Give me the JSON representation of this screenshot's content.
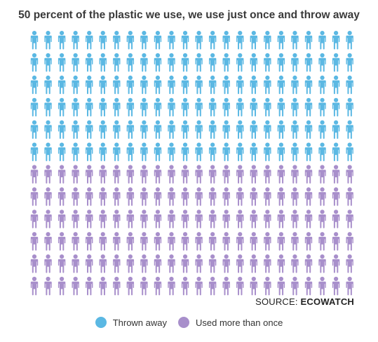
{
  "chart_data": {
    "type": "pictogram",
    "title": "50 percent of the plastic we use, we use just once and throw away",
    "grid": {
      "rows": 12,
      "columns": 24
    },
    "series": [
      {
        "name": "Thrown away",
        "rows": 6,
        "color": "#5bb8e3"
      },
      {
        "name": "Used more than once",
        "rows": 6,
        "color": "#a88fcb"
      }
    ],
    "percent_thrown_away": 50
  },
  "source": {
    "prefix": "SOURCE:",
    "name": "ECOWATCH"
  },
  "legend": {
    "placement": "bottom-center",
    "items": [
      {
        "label": "Thrown away",
        "color": "#5bb8e3"
      },
      {
        "label": "Used more than once",
        "color": "#a88fcb"
      }
    ]
  }
}
